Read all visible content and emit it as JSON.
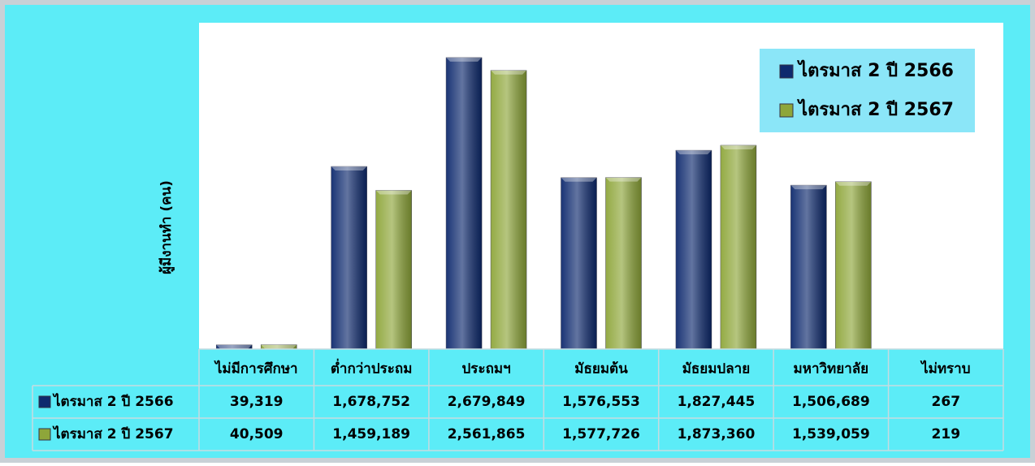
{
  "chart_data": {
    "type": "bar",
    "y_label": "ผู้มีงานทำ (คน)",
    "categories": [
      "ไม่มีการศึกษา",
      "ต่ำกว่าประถม",
      "ประถมฯ",
      "มัธยมต้น",
      "มัธยมปลาย",
      "มหาวิทยาลัย",
      "ไม่ทราบ"
    ],
    "series": [
      {
        "name": "ไตรมาส 2 ปี 2566",
        "color": "#0e2a6e",
        "values": [
          39319,
          1678752,
          2679849,
          1576553,
          1827445,
          1506689,
          267
        ],
        "value_labels": [
          "39,319",
          "1,678,752",
          "2,679,849",
          "1,576,553",
          "1,827,445",
          "1,506,689",
          "267"
        ]
      },
      {
        "name": "ไตรมาส 2 ปี 2567",
        "color": "#8ea63a",
        "values": [
          40509,
          1459189,
          2561865,
          1577726,
          1873360,
          1539059,
          219
        ],
        "value_labels": [
          "40,509",
          "1,459,189",
          "2,561,865",
          "1,577,726",
          "1,873,360",
          "1,539,059",
          "219"
        ]
      }
    ],
    "ylim": [
      0,
      3000000
    ],
    "legend": "top-right"
  }
}
